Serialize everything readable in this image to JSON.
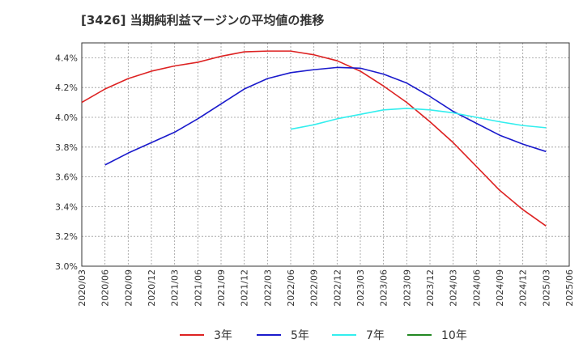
{
  "chart_data": {
    "type": "line",
    "title": "[3426]  当期純利益マージンの平均値の推移",
    "xlabel": "",
    "ylabel": "",
    "ylim": [
      3.0,
      4.5
    ],
    "yticks": [
      "3.0%",
      "3.2%",
      "3.4%",
      "3.6%",
      "3.8%",
      "4.0%",
      "4.2%",
      "4.4%"
    ],
    "categories": [
      "2020/03",
      "2020/06",
      "2020/09",
      "2020/12",
      "2021/03",
      "2021/06",
      "2021/09",
      "2021/12",
      "2022/03",
      "2022/06",
      "2022/09",
      "2022/12",
      "2023/03",
      "2023/06",
      "2023/09",
      "2023/12",
      "2024/03",
      "2024/06",
      "2024/09",
      "2024/12",
      "2025/03",
      "2025/06"
    ],
    "grid": true,
    "legend_position": "bottom",
    "series": [
      {
        "name": "3年",
        "color": "#dd2222",
        "values": [
          4.1,
          4.19,
          4.26,
          4.31,
          4.345,
          4.37,
          4.41,
          4.44,
          4.445,
          4.445,
          4.42,
          4.38,
          4.31,
          4.21,
          4.1,
          3.97,
          3.83,
          3.67,
          3.51,
          3.38,
          3.27,
          null
        ]
      },
      {
        "name": "5年",
        "color": "#1a1acc",
        "values": [
          null,
          3.68,
          3.76,
          3.83,
          3.9,
          3.99,
          4.09,
          4.19,
          4.26,
          4.3,
          4.32,
          4.335,
          4.33,
          4.29,
          4.23,
          4.14,
          4.04,
          3.96,
          3.88,
          3.82,
          3.77,
          null
        ]
      },
      {
        "name": "7年",
        "color": "#33eeee",
        "values": [
          null,
          null,
          null,
          null,
          null,
          null,
          null,
          null,
          null,
          3.92,
          3.95,
          3.99,
          4.02,
          4.05,
          4.06,
          4.05,
          4.03,
          4.0,
          3.97,
          3.945,
          3.93,
          null
        ]
      },
      {
        "name": "10年",
        "color": "#228822",
        "values": [
          null,
          null,
          null,
          null,
          null,
          null,
          null,
          null,
          null,
          null,
          null,
          null,
          null,
          null,
          null,
          null,
          null,
          null,
          null,
          null,
          null,
          null
        ]
      }
    ]
  }
}
